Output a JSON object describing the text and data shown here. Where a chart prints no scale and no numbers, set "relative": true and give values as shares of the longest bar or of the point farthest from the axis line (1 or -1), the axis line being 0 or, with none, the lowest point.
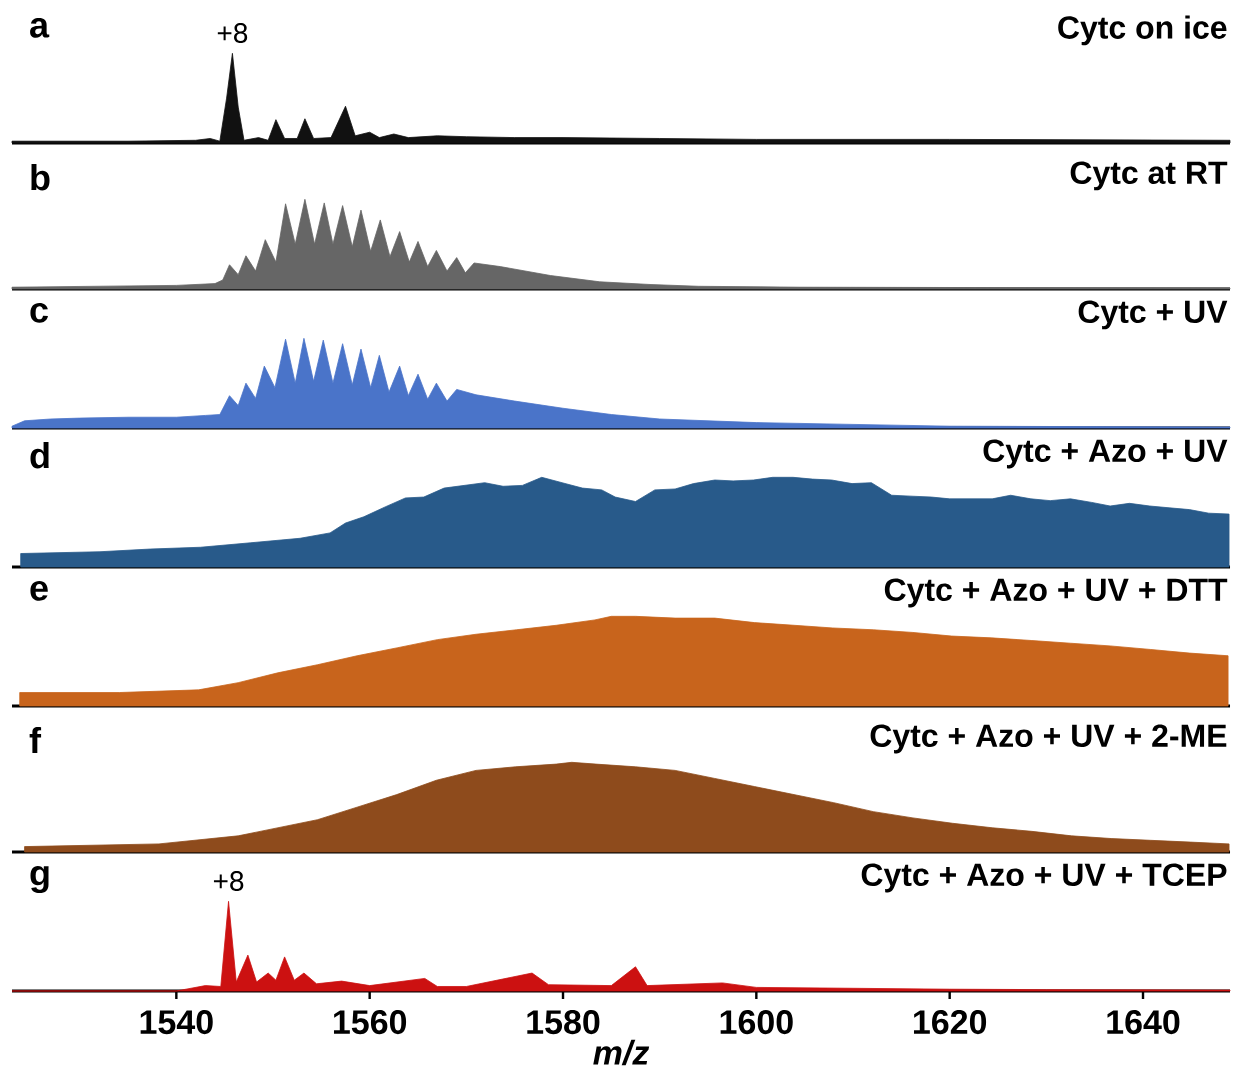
{
  "chart_data": [
    {
      "type": "area",
      "relative": true,
      "title": "Cytc on ice",
      "annotations": [
        "a",
        {
          "text": "+8",
          "x": 1545.8,
          "y": 1.0
        }
      ],
      "xlim": [
        1523,
        1649
      ],
      "tick_labels": false,
      "color": "#111111",
      "x": [
        1523,
        1535,
        1542,
        1543.5,
        1544.5,
        1545.2,
        1545.8,
        1546.4,
        1547,
        1548.5,
        1549.5,
        1550.3,
        1551.2,
        1552.5,
        1553.3,
        1554.2,
        1556,
        1557.5,
        1558.5,
        1560,
        1561,
        1562.5,
        1564,
        1567,
        1570,
        1575,
        1580,
        1590,
        1600,
        1620,
        1649
      ],
      "values": [
        0.02,
        0.02,
        0.03,
        0.05,
        0.02,
        0.5,
        1.0,
        0.4,
        0.03,
        0.06,
        0.03,
        0.26,
        0.05,
        0.05,
        0.27,
        0.05,
        0.06,
        0.41,
        0.08,
        0.12,
        0.06,
        0.1,
        0.06,
        0.08,
        0.07,
        0.06,
        0.06,
        0.05,
        0.04,
        0.04,
        0.03
      ]
    },
    {
      "type": "area",
      "relative": true,
      "title": "Cytc at RT",
      "annotations": [
        "b"
      ],
      "xlim": [
        1523,
        1649
      ],
      "tick_labels": false,
      "color": "#666666",
      "x": [
        1523,
        1540,
        1544,
        1544.8,
        1545.5,
        1546.4,
        1547.2,
        1548.2,
        1549.2,
        1550.3,
        1551.3,
        1552.3,
        1553.3,
        1554.3,
        1555.3,
        1556.2,
        1557.2,
        1558.2,
        1559.1,
        1560.1,
        1561.1,
        1562.1,
        1563.1,
        1564.1,
        1565.0,
        1566.0,
        1566.9,
        1568.0,
        1569.0,
        1569.9,
        1570.8,
        1573.5,
        1578.7,
        1583.8,
        1589,
        1594,
        1604.5,
        1649
      ],
      "values": [
        0.02,
        0.04,
        0.06,
        0.1,
        0.27,
        0.16,
        0.37,
        0.2,
        0.55,
        0.3,
        0.95,
        0.5,
        1.0,
        0.5,
        0.96,
        0.5,
        0.93,
        0.47,
        0.88,
        0.42,
        0.77,
        0.36,
        0.64,
        0.3,
        0.53,
        0.25,
        0.43,
        0.2,
        0.35,
        0.18,
        0.29,
        0.25,
        0.15,
        0.08,
        0.05,
        0.03,
        0.02,
        0.01
      ]
    },
    {
      "type": "area",
      "relative": true,
      "title": "Cytc + UV",
      "annotations": [
        "c"
      ],
      "xlim": [
        1523,
        1649
      ],
      "tick_labels": false,
      "color": "#4a74c9",
      "x": [
        1523,
        1524.3,
        1527,
        1530,
        1535,
        1540,
        1543,
        1544.5,
        1545.5,
        1546.4,
        1547.2,
        1548.2,
        1549.1,
        1550.2,
        1551.3,
        1552.3,
        1553.2,
        1554.2,
        1555.2,
        1556.2,
        1557.2,
        1558.2,
        1559.1,
        1560.1,
        1561.0,
        1562.0,
        1563.1,
        1564.0,
        1565.0,
        1566.0,
        1566.9,
        1568.0,
        1569.0,
        1571,
        1575,
        1580,
        1585,
        1590,
        1600,
        1610,
        1620,
        1649
      ],
      "values": [
        0.02,
        0.08,
        0.1,
        0.11,
        0.12,
        0.12,
        0.14,
        0.15,
        0.36,
        0.25,
        0.5,
        0.33,
        0.69,
        0.45,
        0.99,
        0.5,
        1.0,
        0.52,
        0.98,
        0.5,
        0.94,
        0.48,
        0.88,
        0.45,
        0.81,
        0.4,
        0.69,
        0.36,
        0.6,
        0.32,
        0.5,
        0.3,
        0.43,
        0.37,
        0.3,
        0.22,
        0.15,
        0.1,
        0.06,
        0.04,
        0.02,
        0.01
      ]
    },
    {
      "type": "area",
      "relative": true,
      "title": "Cytc + Azo + UV",
      "annotations": [
        "d"
      ],
      "xlim": [
        1523,
        1649
      ],
      "tick_labels": false,
      "color": "#285a8a",
      "x": [
        1523.9,
        1532.1,
        1537.3,
        1542.5,
        1547.7,
        1552.8,
        1555.9,
        1557.5,
        1559.4,
        1561.6,
        1563.7,
        1565.6,
        1567.7,
        1569.8,
        1571.9,
        1573.8,
        1575.8,
        1577.8,
        1579.9,
        1582.0,
        1584.0,
        1585.4,
        1587.5,
        1589.5,
        1591.6,
        1593.5,
        1595.7,
        1597.6,
        1599.7,
        1601.7,
        1603.8,
        1605.8,
        1607.8,
        1609.9,
        1611.9,
        1614.0,
        1616.0,
        1618.1,
        1620.0,
        1622.2,
        1624.4,
        1626.3,
        1628.4,
        1630.4,
        1632.5,
        1634.7,
        1636.6,
        1638.6,
        1640.7,
        1642.7,
        1644.8,
        1646.8,
        1648.9
      ],
      "values": [
        0.15,
        0.17,
        0.2,
        0.22,
        0.27,
        0.32,
        0.38,
        0.49,
        0.56,
        0.67,
        0.77,
        0.78,
        0.88,
        0.91,
        0.94,
        0.9,
        0.91,
        1.0,
        0.94,
        0.88,
        0.86,
        0.78,
        0.73,
        0.86,
        0.87,
        0.93,
        0.97,
        0.96,
        0.97,
        1.0,
        1.0,
        0.98,
        0.97,
        0.93,
        0.94,
        0.8,
        0.79,
        0.78,
        0.76,
        0.76,
        0.76,
        0.8,
        0.76,
        0.74,
        0.76,
        0.72,
        0.68,
        0.71,
        0.68,
        0.66,
        0.64,
        0.6,
        0.59
      ]
    },
    {
      "type": "area",
      "relative": true,
      "title": "Cytc + Azo + UV + DTT",
      "annotations": [
        "e"
      ],
      "xlim": [
        1523,
        1649
      ],
      "tick_labels": false,
      "color": "#c8641c",
      "x": [
        1523.8,
        1534.1,
        1542.3,
        1546.4,
        1550.5,
        1554.6,
        1558.7,
        1562.9,
        1567.0,
        1571.0,
        1575.2,
        1579.3,
        1583.3,
        1585.0,
        1587.5,
        1591.6,
        1595.7,
        1599.8,
        1603.9,
        1607.9,
        1612.1,
        1616.2,
        1620.2,
        1624.3,
        1628.5,
        1632.5,
        1636.6,
        1640.8,
        1644.8,
        1648.8
      ],
      "values": [
        0.15,
        0.15,
        0.18,
        0.26,
        0.37,
        0.46,
        0.56,
        0.65,
        0.74,
        0.8,
        0.85,
        0.9,
        0.96,
        1.0,
        1.0,
        0.98,
        0.98,
        0.93,
        0.9,
        0.87,
        0.85,
        0.82,
        0.78,
        0.76,
        0.73,
        0.7,
        0.67,
        0.63,
        0.59,
        0.56
      ]
    },
    {
      "type": "area",
      "relative": true,
      "title": "Cytc + Azo + UV + 2-ME",
      "annotations": [
        "f"
      ],
      "xlim": [
        1523,
        1649
      ],
      "tick_labels": false,
      "color": "#8e4b1c",
      "x": [
        1524.3,
        1538.2,
        1546.4,
        1550.5,
        1554.6,
        1558.7,
        1562.8,
        1566.9,
        1571.0,
        1575.1,
        1579.3,
        1580.9,
        1583.4,
        1587.5,
        1591.6,
        1595.7,
        1599.8,
        1603.9,
        1608.0,
        1612.1,
        1616.2,
        1620.3,
        1624.4,
        1628.5,
        1632.6,
        1636.7,
        1640.8,
        1644.9,
        1648.9
      ],
      "values": [
        0.06,
        0.09,
        0.18,
        0.27,
        0.36,
        0.5,
        0.64,
        0.8,
        0.91,
        0.95,
        0.98,
        1.0,
        0.98,
        0.95,
        0.91,
        0.82,
        0.73,
        0.64,
        0.55,
        0.45,
        0.38,
        0.32,
        0.27,
        0.23,
        0.18,
        0.15,
        0.13,
        0.11,
        0.09
      ]
    },
    {
      "type": "area",
      "relative": true,
      "title": "Cytc + Azo + UV + TCEP",
      "xlabel": "*m/z*",
      "annotations": [
        "g",
        {
          "text": "+8",
          "x": 1545.4,
          "y": 1.0
        }
      ],
      "xlim": [
        1523,
        1649
      ],
      "xticks": [
        1540,
        1560,
        1580,
        1600,
        1620,
        1640
      ],
      "tick_labels": "x",
      "color": "#cc1111",
      "x": [
        1523,
        1540,
        1541,
        1543,
        1544.6,
        1545.4,
        1546.2,
        1547.4,
        1548.3,
        1549.5,
        1550.3,
        1551.2,
        1552.2,
        1553.2,
        1554.5,
        1557.1,
        1560,
        1565.7,
        1567,
        1570,
        1576.8,
        1578.5,
        1585,
        1587.5,
        1588.7,
        1596.5,
        1600,
        1610,
        1620,
        1630,
        1649
      ],
      "values": [
        0.0,
        0.0,
        0.02,
        0.06,
        0.05,
        1.0,
        0.1,
        0.4,
        0.1,
        0.2,
        0.12,
        0.38,
        0.12,
        0.2,
        0.08,
        0.11,
        0.06,
        0.14,
        0.05,
        0.05,
        0.2,
        0.07,
        0.06,
        0.27,
        0.06,
        0.09,
        0.04,
        0.03,
        0.02,
        0.015,
        0.01
      ]
    }
  ]
}
